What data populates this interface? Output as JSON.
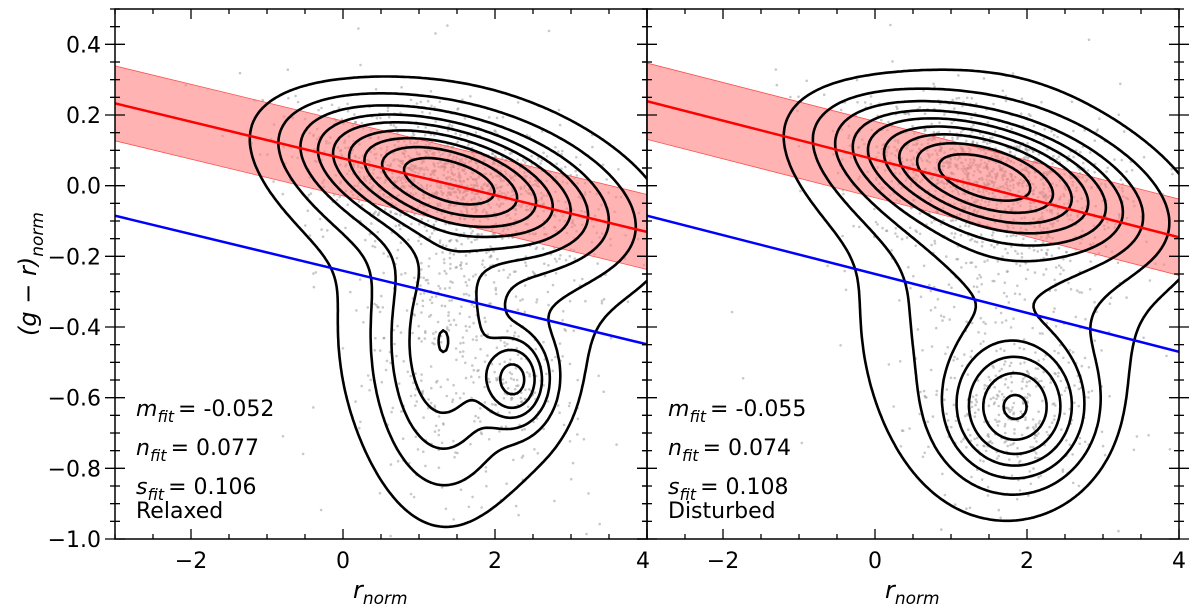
{
  "chart_data": [
    {
      "type": "scatter",
      "panel": "left",
      "xlabel": {
        "var": "r",
        "sub": "norm"
      },
      "ylabel": {
        "pre": "(g − r)",
        "sub": "norm"
      },
      "xlim": [
        -3,
        4
      ],
      "ylim": [
        -1.0,
        0.5
      ],
      "xticks": [
        -2,
        0,
        2,
        4
      ],
      "xtick_labels": [
        "−2",
        "0",
        "2",
        "4"
      ],
      "yticks": [
        -1.0,
        -0.8,
        -0.6,
        -0.4,
        -0.2,
        0.0,
        0.2,
        0.4
      ],
      "ytick_labels": [
        "−1.0",
        "−0.8",
        "−0.6",
        "−0.4",
        "−0.2",
        "0.0",
        "0.2",
        "0.4"
      ],
      "fit": {
        "slope": -0.052,
        "intercept": 0.077,
        "scatter": 0.106,
        "color": "#ff0000",
        "band_color": "#ff8080"
      },
      "threshold_line": {
        "slope": -0.052,
        "intercept": -0.241,
        "color": "#0000ff"
      },
      "annotations": [
        {
          "var": "m",
          "sub": "fit",
          "value": "= -0.052"
        },
        {
          "var": "n",
          "sub": "fit",
          "value": "= 0.077"
        },
        {
          "var": "s",
          "sub": "fit",
          "value": "= 0.106"
        }
      ],
      "sample_label": "Relaxed",
      "density_components": [
        {
          "w": 0.42,
          "mx": 1.35,
          "my": 0.02,
          "sx": 0.8,
          "sy": 0.085,
          "rho": -0.5
        },
        {
          "w": 0.28,
          "mx": 1.6,
          "my": -0.02,
          "sx": 1.1,
          "sy": 0.13,
          "rho": -0.35
        },
        {
          "w": 0.12,
          "mx": 1.3,
          "my": -0.45,
          "sx": 0.42,
          "sy": 0.2,
          "rho": 0.0
        },
        {
          "w": 0.05,
          "mx": 2.25,
          "my": -0.55,
          "sx": 0.25,
          "sy": 0.07,
          "rho": 0.0
        },
        {
          "w": 0.13,
          "mx": 1.6,
          "my": -0.4,
          "sx": 0.95,
          "sy": 0.28,
          "rho": 0.0
        }
      ],
      "contour_levels": [
        0.012,
        0.035,
        0.075,
        0.13,
        0.2,
        0.3,
        0.42,
        0.58,
        0.78
      ],
      "n_points": 1800
    },
    {
      "type": "scatter",
      "panel": "right",
      "xlabel": {
        "var": "r",
        "sub": "norm"
      },
      "xlim": [
        -3,
        4
      ],
      "ylim": [
        -1.0,
        0.5
      ],
      "xticks": [
        -2,
        0,
        2,
        4
      ],
      "xtick_labels": [
        "−2",
        "0",
        "2",
        "4"
      ],
      "fit": {
        "slope": -0.055,
        "intercept": 0.074,
        "scatter": 0.108,
        "color": "#ff0000",
        "band_color": "#ff8080"
      },
      "threshold_line": {
        "slope": -0.055,
        "intercept": -0.25,
        "color": "#0000ff"
      },
      "annotations": [
        {
          "var": "m",
          "sub": "fit",
          "value": "= -0.055"
        },
        {
          "var": "n",
          "sub": "fit",
          "value": "= 0.074"
        },
        {
          "var": "s",
          "sub": "fit",
          "value": "= 0.108"
        }
      ],
      "sample_label": "Disturbed",
      "density_components": [
        {
          "w": 0.4,
          "mx": 1.4,
          "my": 0.03,
          "sx": 0.8,
          "sy": 0.085,
          "rho": -0.5
        },
        {
          "w": 0.26,
          "mx": 1.6,
          "my": -0.01,
          "sx": 1.1,
          "sy": 0.13,
          "rho": -0.35
        },
        {
          "w": 0.16,
          "mx": 1.85,
          "my": -0.63,
          "sx": 0.45,
          "sy": 0.1,
          "rho": 0.0
        },
        {
          "w": 0.18,
          "mx": 1.6,
          "my": -0.35,
          "sx": 0.95,
          "sy": 0.3,
          "rho": 0.0
        }
      ],
      "contour_levels": [
        0.012,
        0.035,
        0.075,
        0.13,
        0.2,
        0.3,
        0.42,
        0.58,
        0.78
      ],
      "n_points": 1800
    }
  ]
}
